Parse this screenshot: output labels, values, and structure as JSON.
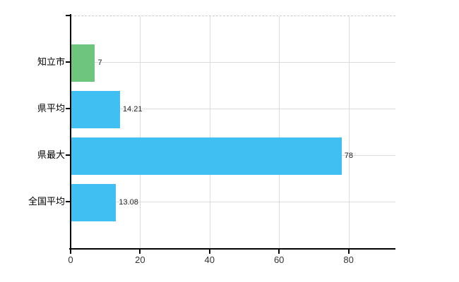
{
  "chart_data": {
    "type": "bar",
    "orientation": "horizontal",
    "title": "",
    "categories": [
      "知立市",
      "県平均",
      "県最大",
      "全国平均"
    ],
    "series": [
      {
        "name": "value",
        "values": [
          7,
          14.21,
          78,
          13.08
        ]
      }
    ],
    "value_labels": [
      "7",
      "14.21",
      "78",
      "13.08"
    ],
    "bar_colors": [
      "#6ec57d",
      "#40bff2",
      "#40bff2",
      "#40bff2"
    ],
    "x_tick_values": [
      0,
      20,
      40,
      60,
      80
    ],
    "x_tick_labels": [
      "0",
      "20",
      "40",
      "60",
      "80"
    ],
    "xlim": [
      0,
      93.5
    ],
    "grid": true,
    "legend_position": "none",
    "background_color": "#ffffff",
    "axis_color": "#000000",
    "gridline_color": "#dcdcdc",
    "plot_top_border_color": "#c9c9d2",
    "tick_label_color": "#333333",
    "value_label_color": "#222222",
    "category_label_color": "#000000"
  }
}
